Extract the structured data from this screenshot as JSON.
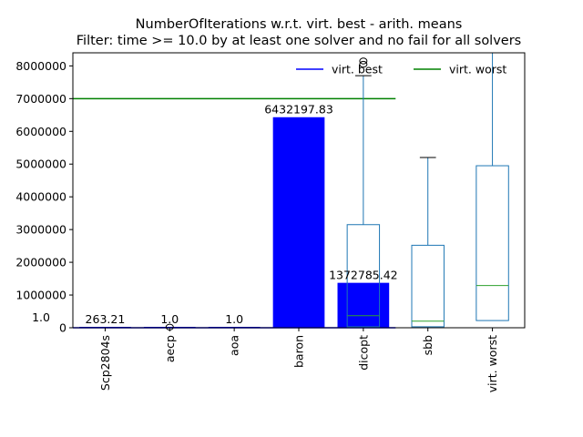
{
  "chart_data": {
    "type": "bar",
    "title": "NumberOfIterations w.r.t. virt. best - arith. means",
    "subtitle": "Filter: time >= 10.0 by at least one solver and no fail for all solvers",
    "xlabel": "",
    "ylabel": "",
    "ylim": [
      0,
      8400000
    ],
    "categories": [
      "Scp2804s",
      "aecp",
      "aoa",
      "baron",
      "dicopt",
      "sbb",
      "virt. worst"
    ],
    "yticks": [
      "0",
      "1000000",
      "2000000",
      "3000000",
      "4000000",
      "5000000",
      "6000000",
      "7000000",
      "8000000"
    ],
    "extra_ytick_label": "1.0",
    "extra_ytick_value": 1.0,
    "bars": {
      "color": "#0000ff",
      "values": [
        263.21,
        1.0,
        1.0,
        6432197.83,
        1372785.42,
        null,
        null
      ],
      "labels": [
        "263.21",
        "1.0",
        "1.0",
        "6432197.83",
        "1372785.42",
        "",
        ""
      ]
    },
    "boxplots": [
      {
        "category": "aecp",
        "q1": 0,
        "median": 0,
        "q3": 0,
        "whisker_low": 0,
        "whisker_high": 0,
        "outliers": [
          20000
        ]
      },
      {
        "category": "dicopt",
        "q1": 30000,
        "median": 370000,
        "q3": 3150000,
        "whisker_low": 0,
        "whisker_high": 7700000,
        "outliers": [
          8050000,
          8150000
        ]
      },
      {
        "category": "sbb",
        "q1": 30000,
        "median": 200000,
        "q3": 2520000,
        "whisker_low": 0,
        "whisker_high": 5200000,
        "outliers": []
      },
      {
        "category": "virt. worst",
        "q1": 220000,
        "median": 1290000,
        "q3": 4950000,
        "whisker_low": 0,
        "whisker_high": 8400000,
        "outliers": []
      }
    ],
    "lines": [
      {
        "name": "virt. best",
        "color": "#0000ff",
        "y": 1.0
      },
      {
        "name": "virt. worst",
        "color": "#008000",
        "y": 7000000
      }
    ],
    "legend": {
      "placement": "top-right",
      "entries": [
        "virt. best",
        "virt. worst"
      ]
    },
    "box_color": "#1f77b4",
    "median_color": "#2ca02c",
    "grid": false
  }
}
